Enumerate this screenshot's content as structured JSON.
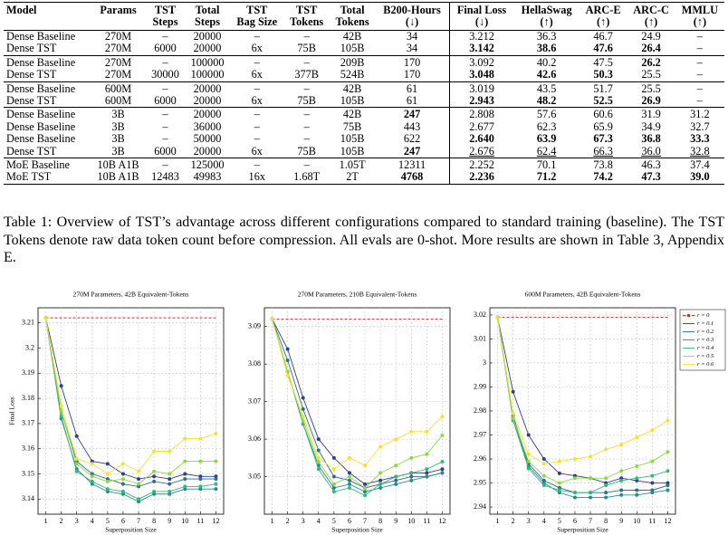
{
  "table": {
    "header": [
      [
        "Model"
      ],
      [
        "Params"
      ],
      [
        "TST",
        "Steps"
      ],
      [
        "Total",
        "Steps"
      ],
      [
        "TST",
        "Bag Size"
      ],
      [
        "TST",
        "Tokens"
      ],
      [
        "Total",
        "Tokens"
      ],
      [
        "B200-Hours",
        "(↓)"
      ],
      [
        "Final Loss",
        "(↓)"
      ],
      [
        "HellaSwag",
        "(↑)"
      ],
      [
        "ARC-E",
        "(↑)"
      ],
      [
        "ARC-C",
        "(↑)"
      ],
      [
        "MMLU",
        "(↑)"
      ]
    ],
    "divider_after": 7,
    "groups": [
      [
        {
          "cells": [
            "Dense Baseline",
            "270M",
            "–",
            "20000",
            "–",
            "–",
            "42B",
            "34",
            "3.212",
            "36.3",
            "46.7",
            "24.9",
            "–"
          ],
          "bold": [],
          "underline": []
        },
        {
          "cells": [
            "Dense TST",
            "270M",
            "6000",
            "20000",
            "6x",
            "75B",
            "105B",
            "34",
            "3.142",
            "38.6",
            "47.6",
            "26.4",
            "–"
          ],
          "bold": [
            8,
            9,
            10,
            11
          ],
          "underline": []
        }
      ],
      [
        {
          "cells": [
            "Dense Baseline",
            "270M",
            "–",
            "100000",
            "–",
            "–",
            "209B",
            "170",
            "3.092",
            "40.2",
            "47.5",
            "26.2",
            "–"
          ],
          "bold": [
            11
          ],
          "underline": []
        },
        {
          "cells": [
            "Dense TST",
            "270M",
            "30000",
            "100000",
            "6x",
            "377B",
            "524B",
            "170",
            "3.048",
            "42.6",
            "50.3",
            "25.5",
            "–"
          ],
          "bold": [
            8,
            9,
            10
          ],
          "underline": []
        }
      ],
      [
        {
          "cells": [
            "Dense Baseline",
            "600M",
            "–",
            "20000",
            "–",
            "–",
            "42B",
            "61",
            "3.019",
            "43.5",
            "51.7",
            "25.5",
            "–"
          ],
          "bold": [],
          "underline": []
        },
        {
          "cells": [
            "Dense TST",
            "600M",
            "6000",
            "20000",
            "6x",
            "75B",
            "105B",
            "61",
            "2.943",
            "48.2",
            "52.5",
            "26.9",
            "–"
          ],
          "bold": [
            8,
            9,
            10,
            11
          ],
          "underline": []
        }
      ],
      [
        {
          "cells": [
            "Dense Baseline",
            "3B",
            "–",
            "20000",
            "–",
            "–",
            "42B",
            "247",
            "2.808",
            "57.6",
            "60.6",
            "31.9",
            "31.2"
          ],
          "bold": [
            7
          ],
          "underline": []
        },
        {
          "cells": [
            "Dense Baseline",
            "3B",
            "–",
            "36000",
            "–",
            "–",
            "75B",
            "443",
            "2.677",
            "62.3",
            "65.9",
            "34.9",
            "32.7"
          ],
          "bold": [],
          "underline": []
        },
        {
          "cells": [
            "Dense Baseline",
            "3B",
            "–",
            "50000",
            "–",
            "–",
            "105B",
            "622",
            "2.640",
            "63.9",
            "67.3",
            "36.8",
            "33.3"
          ],
          "bold": [
            8,
            9,
            10,
            11,
            12
          ],
          "underline": []
        },
        {
          "cells": [
            "Dense TST",
            "3B",
            "6000",
            "20000",
            "6x",
            "75B",
            "105B",
            "247",
            "2.676",
            "62.4",
            "66.3",
            "36.0",
            "32.8"
          ],
          "bold": [
            7
          ],
          "underline": [
            8,
            9,
            10,
            11,
            12
          ]
        }
      ],
      [
        {
          "cells": [
            "MoE Baseline",
            "10B A1B",
            "–",
            "125000",
            "–",
            "–",
            "1.05T",
            "12311",
            "2.252",
            "70.1",
            "73.8",
            "46.3",
            "37.4"
          ],
          "bold": [],
          "underline": []
        },
        {
          "cells": [
            "MoE TST",
            "10B A1B",
            "12483",
            "49983",
            "16x",
            "1.68T",
            "2T",
            "4768",
            "2.236",
            "71.2",
            "74.2",
            "47.3",
            "39.0"
          ],
          "bold": [
            7,
            8,
            9,
            10,
            11,
            12
          ],
          "underline": []
        }
      ]
    ]
  },
  "caption": "Table 1: Overview of TST’s advantage across different configurations compared to standard training (baseline). The TST Tokens denote raw data token count before compression. All evals are 0-shot. More results are shown in Table 3, Appendix E.",
  "chart_data": [
    {
      "type": "line",
      "title": "270M Parameters, 42B Equivalent-Tokens",
      "x_label": "Superposition Size",
      "y_label": "Final Loss",
      "x": [
        1,
        2,
        3,
        4,
        5,
        6,
        7,
        8,
        9,
        10,
        11,
        12
      ],
      "xlim": [
        0.5,
        12.5
      ],
      "xticks": [
        1,
        2,
        3,
        4,
        5,
        6,
        7,
        8,
        9,
        10,
        11,
        12
      ],
      "ylim": [
        3.134,
        3.216
      ],
      "yticks": [
        3.14,
        3.15,
        3.16,
        3.17,
        3.18,
        3.19,
        3.2,
        3.21
      ],
      "grid": true,
      "series": [
        {
          "color": "#e8202a",
          "dashed": true,
          "values": [
            3.212,
            3.212,
            3.212,
            3.212,
            3.212,
            3.212,
            3.212,
            3.212,
            3.212,
            3.212,
            3.212,
            3.212
          ]
        },
        {
          "color": "#2e3f8f",
          "values": [
            3.212,
            3.185,
            3.165,
            3.155,
            3.154,
            3.15,
            3.148,
            3.149,
            3.148,
            3.15,
            3.149,
            3.149
          ]
        },
        {
          "color": "#2e6e8e",
          "values": [
            3.212,
            3.175,
            3.155,
            3.15,
            3.148,
            3.146,
            3.145,
            3.147,
            3.146,
            3.148,
            3.148,
            3.148
          ]
        },
        {
          "color": "#21908d",
          "values": [
            3.212,
            3.172,
            3.152,
            3.146,
            3.143,
            3.142,
            3.139,
            3.142,
            3.142,
            3.144,
            3.144,
            3.144
          ]
        },
        {
          "color": "#35b779",
          "values": [
            3.212,
            3.173,
            3.151,
            3.147,
            3.144,
            3.143,
            3.14,
            3.143,
            3.143,
            3.145,
            3.145,
            3.146
          ]
        },
        {
          "color": "#90d743",
          "values": [
            3.212,
            3.175,
            3.154,
            3.149,
            3.147,
            3.148,
            3.146,
            3.151,
            3.15,
            3.155,
            3.155,
            3.155
          ]
        },
        {
          "color": "#f5e02a",
          "values": [
            3.212,
            3.177,
            3.156,
            3.154,
            3.15,
            3.154,
            3.151,
            3.159,
            3.159,
            3.164,
            3.164,
            3.166
          ]
        }
      ]
    },
    {
      "type": "line",
      "title": "270M Parameters, 210B Equivalent-Tokens",
      "x_label": "Superposition Size",
      "x": [
        1,
        2,
        3,
        4,
        5,
        6,
        7,
        8,
        9,
        10,
        11,
        12
      ],
      "xlim": [
        0.5,
        12.5
      ],
      "xticks": [
        1,
        2,
        3,
        4,
        5,
        6,
        7,
        8,
        9,
        10,
        11,
        12
      ],
      "ylim": [
        3.04,
        3.095
      ],
      "yticks": [
        3.05,
        3.06,
        3.07,
        3.08,
        3.09
      ],
      "grid": true,
      "series": [
        {
          "color": "#e8202a",
          "dashed": true,
          "values": [
            3.092,
            3.092,
            3.092,
            3.092,
            3.092,
            3.092,
            3.092,
            3.092,
            3.092,
            3.092,
            3.092,
            3.092
          ]
        },
        {
          "color": "#2e3f8f",
          "values": [
            3.092,
            3.084,
            3.071,
            3.06,
            3.055,
            3.051,
            3.048,
            3.049,
            3.05,
            3.051,
            3.051,
            3.052
          ]
        },
        {
          "color": "#2e6e8e",
          "values": [
            3.092,
            3.081,
            3.068,
            3.057,
            3.05,
            3.049,
            3.047,
            3.048,
            3.049,
            3.05,
            3.05,
            3.051
          ]
        },
        {
          "color": "#21908d",
          "values": [
            3.092,
            3.078,
            3.064,
            3.053,
            3.047,
            3.048,
            3.046,
            3.047,
            3.048,
            3.049,
            3.05,
            3.051
          ]
        },
        {
          "color": "#35b779",
          "values": [
            3.092,
            3.078,
            3.064,
            3.052,
            3.046,
            3.047,
            3.045,
            3.048,
            3.05,
            3.051,
            3.052,
            3.054
          ]
        },
        {
          "color": "#90d743",
          "values": [
            3.092,
            3.078,
            3.065,
            3.054,
            3.048,
            3.05,
            3.047,
            3.051,
            3.053,
            3.055,
            3.056,
            3.061
          ]
        },
        {
          "color": "#f5e02a",
          "values": [
            3.092,
            3.077,
            3.066,
            3.055,
            3.052,
            3.055,
            3.053,
            3.058,
            3.06,
            3.062,
            3.062,
            3.066
          ]
        }
      ]
    },
    {
      "type": "line",
      "title": "600M Parameters, 42B Equivalent-Tokens",
      "x_label": "Superposition Size",
      "x": [
        1,
        2,
        3,
        4,
        5,
        6,
        7,
        8,
        9,
        10,
        11,
        12
      ],
      "xlim": [
        0.5,
        12.5
      ],
      "xticks": [
        1,
        2,
        3,
        4,
        5,
        6,
        7,
        8,
        9,
        10,
        11,
        12
      ],
      "ylim": [
        2.937,
        3.023
      ],
      "yticks": [
        2.94,
        2.95,
        2.96,
        2.97,
        2.98,
        2.99,
        3,
        3.01,
        3.02
      ],
      "grid": true,
      "legend": "outside-right",
      "series": [
        {
          "name": "r = 0",
          "color": "#e8202a",
          "dashed": true,
          "values": [
            3.019,
            3.019,
            3.019,
            3.019,
            3.019,
            3.019,
            3.019,
            3.019,
            3.019,
            3.019,
            3.019,
            3.019
          ]
        },
        {
          "name": "r = 0.1",
          "color": "#2e3f8f",
          "values": [
            3.019,
            2.988,
            2.97,
            2.96,
            2.954,
            2.953,
            2.952,
            2.95,
            2.952,
            2.951,
            2.95,
            2.95
          ]
        },
        {
          "name": "r = 0.2",
          "color": "#2e6e8e",
          "values": [
            3.019,
            2.978,
            2.958,
            2.951,
            2.948,
            2.946,
            2.946,
            2.946,
            2.947,
            2.947,
            2.947,
            2.949
          ]
        },
        {
          "name": "r = 0.3",
          "color": "#21908d",
          "values": [
            3.019,
            2.977,
            2.957,
            2.95,
            2.946,
            2.944,
            2.944,
            2.944,
            2.945,
            2.945,
            2.946,
            2.947
          ]
        },
        {
          "name": "r = 0.4",
          "color": "#35b779",
          "values": [
            3.019,
            2.976,
            2.956,
            2.949,
            2.947,
            2.946,
            2.946,
            2.949,
            2.951,
            2.952,
            2.953,
            2.955
          ]
        },
        {
          "name": "r = 0.5",
          "color": "#90d743",
          "values": [
            3.019,
            2.977,
            2.959,
            2.953,
            2.95,
            2.952,
            2.952,
            2.952,
            2.955,
            2.957,
            2.959,
            2.963
          ]
        },
        {
          "name": "r = 0.6",
          "color": "#f5e02a",
          "values": [
            3.019,
            2.979,
            2.962,
            2.958,
            2.959,
            2.96,
            2.961,
            2.964,
            2.966,
            2.969,
            2.972,
            2.976
          ]
        }
      ]
    }
  ]
}
